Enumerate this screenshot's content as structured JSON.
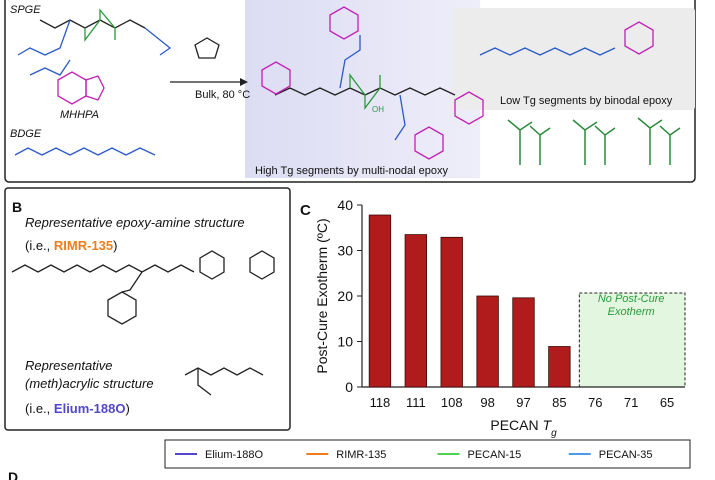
{
  "panel_a": {
    "spge": "SPGE",
    "mhhpa": "MHHPA",
    "bdge": "BDGE",
    "condition": "Bulk, 80 °C",
    "high_tg": "High Tg segments by multi-nodal epoxy",
    "low_tg": "Low Tg segments by binodal epoxy",
    "oh": "OH"
  },
  "panel_b": {
    "letter": "B",
    "line1": "Representative epoxy-amine structure",
    "ie_prefix": "(i.e., ",
    "resin1": "RIMR-135",
    "ie_suffix": ")",
    "line2": "Representative",
    "line3": "(meth)acrylic structure",
    "resin2": "Elium-188O"
  },
  "chart_data": {
    "type": "bar",
    "letter": "C",
    "ylabel": "Post-Cure Exotherm (ºC)",
    "xlabel": {
      "text": "PECAN ",
      "symbol": "T",
      "subscript": "g"
    },
    "annotation": [
      "No Post-Cure",
      "Exotherm"
    ],
    "categories": [
      "118",
      "111",
      "108",
      "98",
      "97",
      "85",
      "76",
      "71",
      "65"
    ],
    "values": [
      37.8,
      33.5,
      32.9,
      20,
      19.6,
      8.9,
      null,
      null,
      null
    ],
    "color": "#b01c1c",
    "ylim": [
      0,
      40
    ],
    "yticks": [
      0,
      10,
      20,
      30,
      40
    ]
  },
  "legend": {
    "items": [
      {
        "name": "Elium-188O",
        "color": "#5347c9"
      },
      {
        "name": "RIMR-135",
        "color": "#f07d1a"
      },
      {
        "name": "PECAN-15",
        "color": "#4fd24f"
      },
      {
        "name": "PECAN-35",
        "color": "#4a9be8"
      }
    ]
  },
  "panel_d": {
    "letter": "D"
  }
}
